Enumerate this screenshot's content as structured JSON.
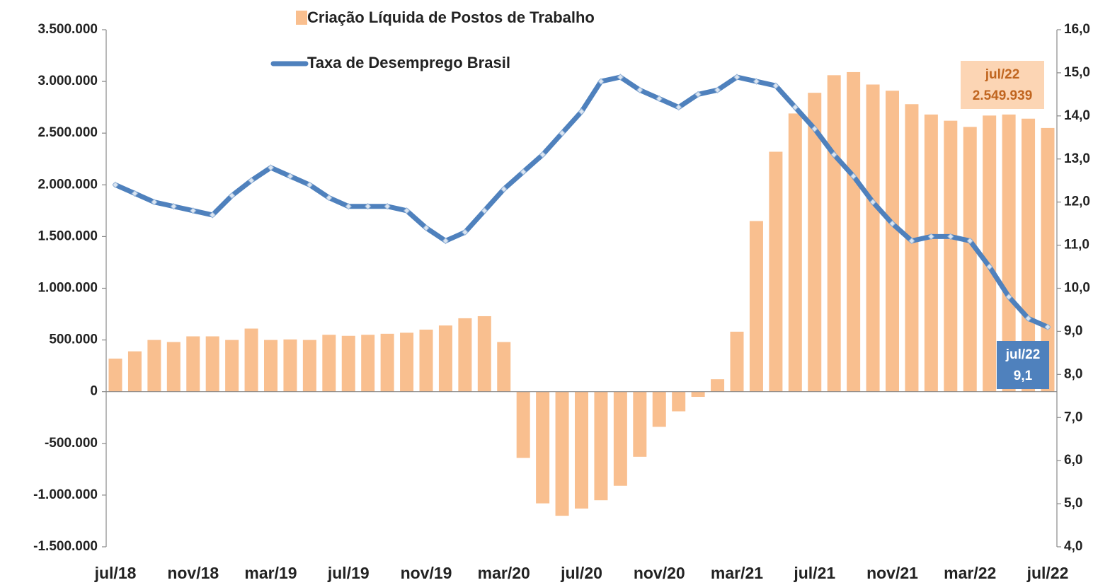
{
  "chart_data": {
    "type": "bar-line",
    "categories": [
      "jul/18",
      null,
      null,
      null,
      "nov/18",
      null,
      null,
      null,
      "mar/19",
      null,
      null,
      null,
      "jul/19",
      null,
      null,
      null,
      "nov/19",
      null,
      null,
      null,
      "mar/20",
      null,
      null,
      null,
      "jul/20",
      null,
      null,
      null,
      "nov/20",
      null,
      null,
      null,
      "mar/21",
      null,
      null,
      null,
      "jul/21",
      null,
      null,
      null,
      "nov/21",
      null,
      null,
      null,
      "mar/22",
      null,
      null,
      null,
      "jul/22"
    ],
    "series": [
      {
        "name": "Criação Líquida de Postos de Trabalho",
        "type": "bar",
        "color": "#f9bf8f",
        "values": [
          320000,
          390000,
          500000,
          480000,
          535000,
          535000,
          500000,
          610000,
          500000,
          505000,
          500000,
          550000,
          540000,
          550000,
          560000,
          570000,
          600000,
          640000,
          710000,
          730000,
          480000,
          -640000,
          -1080000,
          -1200000,
          -1130000,
          -1050000,
          -910000,
          -630000,
          -340000,
          -190000,
          -50000,
          120000,
          580000,
          1650000,
          2320000,
          2690000,
          2890000,
          3060000,
          3090000,
          2970000,
          2910000,
          2780000,
          2680000,
          2620000,
          2560000,
          2670000,
          2680000,
          2640000,
          2549939
        ],
        "value_labels": [
          null,
          null,
          null,
          null,
          null,
          null,
          null,
          null,
          null,
          null,
          null,
          null,
          null,
          null,
          null,
          null,
          null,
          null,
          null,
          null,
          null,
          null,
          null,
          null,
          null,
          null,
          null,
          null,
          null,
          null,
          null,
          null,
          null,
          null,
          null,
          null,
          null,
          null,
          null,
          null,
          null,
          null,
          null,
          null,
          null,
          null,
          null,
          null,
          "2.549.939"
        ]
      },
      {
        "name": "Taxa de Desemprego Brasil",
        "type": "line",
        "axis": "y2",
        "color": "#4f81bd",
        "values": [
          12.4,
          12.2,
          12.0,
          11.9,
          11.8,
          11.7,
          12.15,
          12.5,
          12.8,
          12.6,
          12.4,
          12.1,
          11.9,
          11.9,
          11.9,
          11.8,
          11.4,
          11.1,
          11.3,
          11.8,
          12.3,
          12.7,
          13.1,
          13.6,
          14.1,
          14.8,
          14.9,
          14.6,
          14.4,
          14.2,
          14.5,
          14.6,
          14.9,
          14.8,
          14.7,
          14.2,
          13.7,
          13.1,
          12.6,
          12.0,
          11.5,
          11.1,
          11.2,
          11.2,
          11.1,
          10.5,
          9.8,
          9.3,
          9.1
        ],
        "value_labels": [
          null,
          null,
          null,
          null,
          null,
          null,
          null,
          null,
          null,
          null,
          null,
          null,
          null,
          null,
          null,
          null,
          null,
          null,
          null,
          null,
          null,
          null,
          null,
          null,
          null,
          null,
          null,
          null,
          null,
          null,
          null,
          null,
          null,
          null,
          null,
          null,
          null,
          null,
          null,
          null,
          null,
          null,
          null,
          null,
          null,
          null,
          null,
          null,
          "9,1"
        ]
      }
    ],
    "ylim": [
      -1500000,
      3500000
    ],
    "yticks": [
      {
        "value": -1500000,
        "label": "-1.500.000"
      },
      {
        "value": -1000000,
        "label": "-1.000.000"
      },
      {
        "value": -500000,
        "label": "-500.000"
      },
      0,
      {
        "value": 500000,
        "label": "500.000"
      },
      {
        "value": 1000000,
        "label": "1.000.000"
      },
      {
        "value": 1500000,
        "label": "1.500.000"
      },
      {
        "value": 2000000,
        "label": "2.000.000"
      },
      {
        "value": 2500000,
        "label": "2.500.000"
      },
      {
        "value": 3000000,
        "label": "3.000.000"
      },
      {
        "value": 3500000,
        "label": "3.500.000"
      }
    ],
    "y2lim": [
      4,
      16
    ],
    "y2ticks": [
      {
        "value": 4,
        "label": "4,0"
      },
      {
        "value": 5,
        "label": "5,0"
      },
      {
        "value": 6,
        "label": "6,0"
      },
      {
        "value": 7,
        "label": "7,0"
      },
      {
        "value": 8,
        "label": "8,0"
      },
      {
        "value": 9,
        "label": "9,0"
      },
      {
        "value": 10,
        "label": "10,0"
      },
      {
        "value": 11,
        "label": "11,0"
      },
      {
        "value": 12,
        "label": "12,0"
      },
      {
        "value": 13,
        "label": "13,0"
      },
      {
        "value": 14,
        "label": "14,0"
      },
      {
        "value": 15,
        "label": "15,0"
      },
      {
        "value": 16,
        "label": "16,0"
      }
    ],
    "grid": false
  }
}
